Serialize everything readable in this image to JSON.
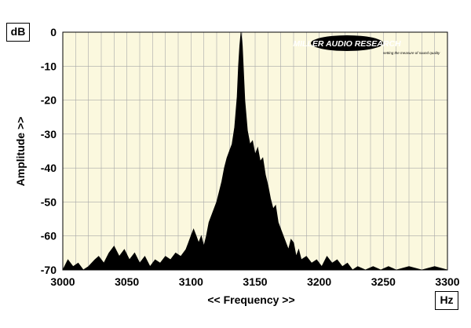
{
  "chart_data": {
    "type": "area",
    "title": "",
    "xlabel": "<< Frequency >>",
    "ylabel": "Amplitude >>",
    "x_unit": "Hz",
    "y_unit": "dB",
    "xlim": [
      3000,
      3300
    ],
    "ylim": [
      -70,
      0
    ],
    "x_ticks": [
      3000,
      3050,
      3100,
      3150,
      3200,
      3250,
      3300
    ],
    "y_ticks": [
      0,
      -10,
      -20,
      -30,
      -40,
      -50,
      -60,
      -70
    ],
    "grid": true,
    "series": [
      {
        "values": [
          [
            3000,
            -70
          ],
          [
            3004,
            -67
          ],
          [
            3008,
            -69
          ],
          [
            3012,
            -68
          ],
          [
            3016,
            -70
          ],
          [
            3020,
            -69
          ],
          [
            3025,
            -67
          ],
          [
            3028,
            -66
          ],
          [
            3032,
            -68
          ],
          [
            3036,
            -65
          ],
          [
            3040,
            -63
          ],
          [
            3044,
            -66
          ],
          [
            3048,
            -64
          ],
          [
            3052,
            -67
          ],
          [
            3056,
            -65
          ],
          [
            3060,
            -68
          ],
          [
            3064,
            -66
          ],
          [
            3068,
            -69
          ],
          [
            3072,
            -67
          ],
          [
            3076,
            -68
          ],
          [
            3080,
            -66
          ],
          [
            3084,
            -67
          ],
          [
            3088,
            -65
          ],
          [
            3092,
            -66
          ],
          [
            3096,
            -64
          ],
          [
            3098,
            -62
          ],
          [
            3100,
            -60
          ],
          [
            3102,
            -58
          ],
          [
            3104,
            -60
          ],
          [
            3106,
            -62
          ],
          [
            3108,
            -60
          ],
          [
            3110,
            -63
          ],
          [
            3112,
            -60
          ],
          [
            3114,
            -56
          ],
          [
            3116,
            -54
          ],
          [
            3118,
            -52
          ],
          [
            3120,
            -50
          ],
          [
            3122,
            -47
          ],
          [
            3124,
            -44
          ],
          [
            3126,
            -40
          ],
          [
            3128,
            -37
          ],
          [
            3130,
            -35
          ],
          [
            3132,
            -33
          ],
          [
            3134,
            -28
          ],
          [
            3136,
            -19
          ],
          [
            3137,
            -10
          ],
          [
            3138,
            -4
          ],
          [
            3139,
            0
          ],
          [
            3140,
            -4
          ],
          [
            3141,
            -12
          ],
          [
            3142,
            -20
          ],
          [
            3144,
            -29
          ],
          [
            3146,
            -33
          ],
          [
            3148,
            -32
          ],
          [
            3150,
            -36
          ],
          [
            3152,
            -34
          ],
          [
            3154,
            -38
          ],
          [
            3156,
            -37
          ],
          [
            3158,
            -42
          ],
          [
            3160,
            -45
          ],
          [
            3162,
            -49
          ],
          [
            3164,
            -52
          ],
          [
            3166,
            -51
          ],
          [
            3168,
            -56
          ],
          [
            3170,
            -58
          ],
          [
            3172,
            -60
          ],
          [
            3174,
            -62
          ],
          [
            3176,
            -64
          ],
          [
            3178,
            -61
          ],
          [
            3180,
            -62
          ],
          [
            3182,
            -66
          ],
          [
            3184,
            -64
          ],
          [
            3186,
            -67
          ],
          [
            3190,
            -66
          ],
          [
            3194,
            -68
          ],
          [
            3198,
            -67
          ],
          [
            3202,
            -69
          ],
          [
            3206,
            -66
          ],
          [
            3210,
            -68
          ],
          [
            3214,
            -67
          ],
          [
            3218,
            -69
          ],
          [
            3222,
            -68
          ],
          [
            3226,
            -70
          ],
          [
            3230,
            -69
          ],
          [
            3236,
            -70
          ],
          [
            3242,
            -69
          ],
          [
            3248,
            -70
          ],
          [
            3254,
            -69
          ],
          [
            3260,
            -70
          ],
          [
            3270,
            -69
          ],
          [
            3280,
            -70
          ],
          [
            3290,
            -69
          ],
          [
            3300,
            -70
          ]
        ]
      }
    ],
    "colors": {
      "plot_background": "#fbf8de",
      "grid": "#a8a8a8",
      "fill": "#000000"
    }
  },
  "logo": {
    "name": "MILLER AUDIO RESEARCH",
    "tagline": "setting the measure of sound quality"
  }
}
